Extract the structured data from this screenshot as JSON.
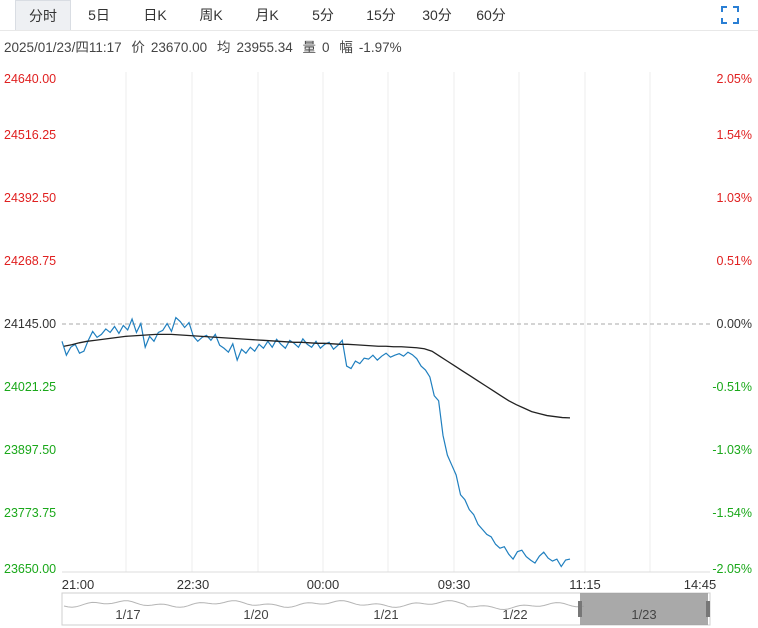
{
  "tabs": [
    {
      "label": "分时",
      "active": true
    },
    {
      "label": "5日"
    },
    {
      "label": "日K"
    },
    {
      "label": "周K"
    },
    {
      "label": "月K"
    },
    {
      "label": "5分"
    },
    {
      "label": "15分"
    },
    {
      "label": "30分"
    },
    {
      "label": "60分"
    }
  ],
  "fullscreen_icon": "expand-corners-icon",
  "info": {
    "datetime": "2025/01/23/四11:17",
    "price_label": "价",
    "price": "23670.00",
    "avg_label": "均",
    "avg": "23955.34",
    "volume_label": "量",
    "volume": "0",
    "change_label": "幅",
    "change": "-1.97%"
  },
  "colors": {
    "up": "#e02020",
    "down": "#1aa81a",
    "price_line": "#1f7fbf",
    "avg_line": "#222222",
    "baseline": "#aaaaaa",
    "grid": "#ececec"
  },
  "chart_data": {
    "type": "line",
    "title": "",
    "ylim": [
      23650,
      24640
    ],
    "prev_close": 24145.0,
    "y_ticks": [
      "24640.00",
      "24516.25",
      "24392.50",
      "24268.75",
      "24145.00",
      "24021.25",
      "23897.50",
      "23773.75",
      "23650.00"
    ],
    "y_ticks_right": [
      "2.05%",
      "1.54%",
      "1.03%",
      "0.51%",
      "0.00%",
      "-0.51%",
      "-1.03%",
      "-1.54%",
      "-2.05%"
    ],
    "x_ticks": [
      "21:00",
      "22:30",
      "00:00",
      "09:30",
      "11:15",
      "14:45"
    ],
    "series": [
      {
        "values": [
          24110,
          24082,
          24098,
          24104,
          24086,
          24090,
          24112,
          24130,
          24118,
          24124,
          24135,
          24128,
          24140,
          24126,
          24142,
          24133,
          24155,
          24128,
          24146,
          24098,
          24120,
          24110,
          24128,
          24132,
          24146,
          24130,
          24158,
          24150,
          24138,
          24148,
          24120,
          24110,
          24118,
          24122,
          24112,
          24124,
          24102,
          24096,
          24088,
          24105,
          24072,
          24094,
          24086,
          24098,
          24090,
          24104,
          24096,
          24110,
          24098,
          24114,
          24104,
          24096,
          24112,
          24106,
          24098,
          24115,
          24104,
          24098,
          24110,
          24096,
          24104,
          24108,
          24094,
          24102,
          24112,
          24060,
          24055,
          24070,
          24065,
          24076,
          24074,
          24082,
          24072,
          24080,
          24086,
          24078,
          24082,
          24085,
          24080,
          24088,
          24083,
          24075,
          24060,
          24052,
          24038,
          24000,
          23990,
          23920,
          23880,
          23860,
          23840,
          23800,
          23790,
          23770,
          23760,
          23740,
          23730,
          23720,
          23715,
          23700,
          23692,
          23695,
          23680,
          23670,
          23685,
          23688,
          23675,
          23668,
          23662,
          23676,
          23684,
          23672,
          23666,
          23670,
          23655,
          23668,
          23670
        ]
      },
      {
        "values": [
          24100,
          24103,
          24107,
          24110,
          24112,
          24114,
          24116,
          24118,
          24120,
          24121,
          24122,
          24123,
          24124,
          24124,
          24124,
          24123,
          24122,
          24121,
          24120,
          24119,
          24118,
          24117,
          24116,
          24115,
          24114,
          24113,
          24112,
          24111,
          24110,
          24109,
          24108,
          24108,
          24107,
          24106,
          24106,
          24105,
          24104,
          24104,
          24103,
          24102,
          24101,
          24100,
          24100,
          24099,
          24099,
          24098,
          24097,
          24095,
          24090,
          24080,
          24070,
          24060,
          24050,
          24040,
          24030,
          24020,
          24010,
          24000,
          23990,
          23982,
          23975,
          23968,
          23964,
          23960,
          23958,
          23956,
          23955.34
        ]
      }
    ]
  },
  "navigator": {
    "labels": [
      "1/17",
      "1/20",
      "1/21",
      "1/22",
      "1/23"
    ]
  }
}
